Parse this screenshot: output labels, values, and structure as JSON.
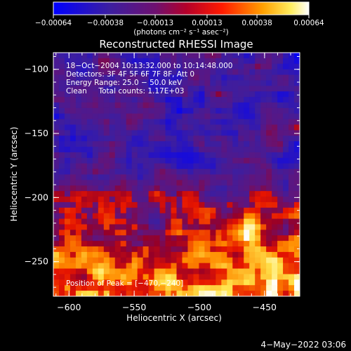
{
  "chart_data": {
    "type": "heatmap",
    "title": "Reconstructed RHESSI Image",
    "xlabel": "Heliocentric X (arcsec)",
    "ylabel": "Heliocentric Y (arcsec)",
    "xlim": [
      -612,
      -423
    ],
    "ylim": [
      -277,
      -87
    ],
    "x_ticks": [
      -600,
      -550,
      -500,
      -450
    ],
    "x_tick_labels": [
      "−600",
      "−550",
      "−500",
      "−450"
    ],
    "y_ticks": [
      -100,
      -150,
      -200,
      -250
    ],
    "y_tick_labels": [
      "−100",
      "−150",
      "−200",
      "−250"
    ],
    "colorbar": {
      "min": -0.00064,
      "max": 0.00064,
      "ticks": [
        -0.00064,
        -0.00038,
        -0.00013,
        0.00013,
        0.00038,
        0.00064
      ],
      "tick_labels": [
        "−0.00064",
        "−0.00038",
        "−0.00013",
        "0.00013",
        "0.00038",
        "0.00064"
      ],
      "unit_label": "(photons cm⁻² s⁻¹ asec⁻²)",
      "colors": [
        "#0000ff",
        "#3c1e96",
        "#7a0a4a",
        "#ff0000",
        "#ffa000",
        "#ffffff"
      ]
    },
    "annotations": {
      "time": "18−Oct−2004 10:13:32.000 to 10:14:48.000",
      "detectors": "Detectors: 3F 4F 5F 6F 7F 8F, Att 0",
      "energy": "Energy Range: 25.0 − 50.0 keV",
      "clean_counts": "Clean     Total counts: 1.17E+03",
      "peak": "Position of Peak = [−470,−240]"
    },
    "peak_position": [
      -470,
      -240
    ]
  },
  "footer": {
    "date": "4−May−2022 03:06"
  }
}
